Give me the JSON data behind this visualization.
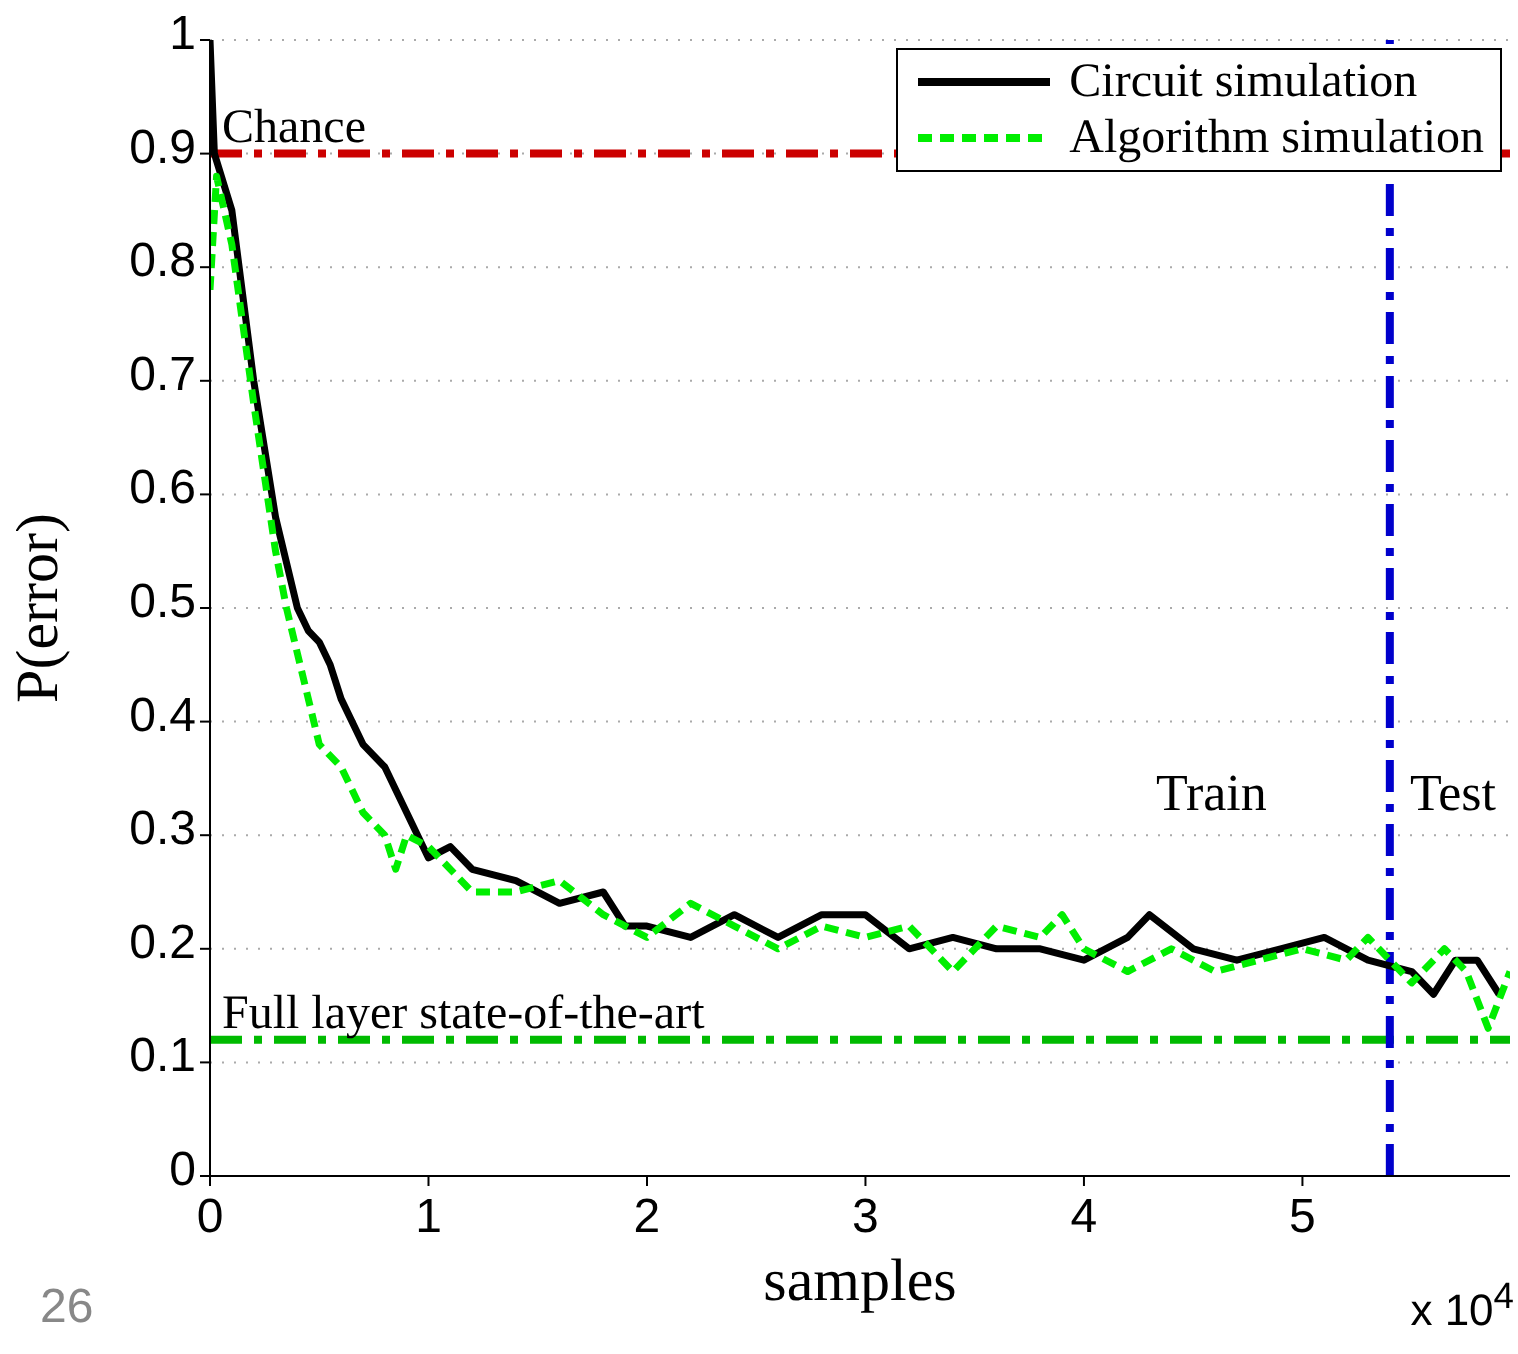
{
  "chart_data": {
    "type": "line",
    "xlabel": "samples",
    "ylabel": "P(error)",
    "xlim": [
      0,
      5.95
    ],
    "xticks": [
      0,
      1,
      2,
      3,
      4,
      5
    ],
    "ylim": [
      0,
      1
    ],
    "yticks": [
      0,
      0.1,
      0.2,
      0.3,
      0.4,
      0.5,
      0.6,
      0.7,
      0.8,
      0.9,
      1
    ],
    "grid": "y",
    "legend": "top right",
    "marker": "none",
    "series": [
      {
        "name": "Circuit simulation",
        "color": "#000000",
        "line_style": "solid",
        "x": [
          0,
          0.02,
          0.1,
          0.2,
          0.3,
          0.4,
          0.45,
          0.5,
          0.55,
          0.6,
          0.7,
          0.8,
          0.9,
          1.0,
          1.1,
          1.2,
          1.4,
          1.6,
          1.8,
          1.9,
          2.0,
          2.2,
          2.4,
          2.6,
          2.8,
          3.0,
          3.2,
          3.4,
          3.6,
          3.8,
          4.0,
          4.2,
          4.3,
          4.5,
          4.7,
          4.9,
          5.1,
          5.3,
          5.5,
          5.6,
          5.7,
          5.8,
          5.9
        ],
        "values": [
          1.0,
          0.9,
          0.85,
          0.7,
          0.58,
          0.5,
          0.48,
          0.47,
          0.45,
          0.42,
          0.38,
          0.36,
          0.32,
          0.28,
          0.29,
          0.27,
          0.26,
          0.24,
          0.25,
          0.22,
          0.22,
          0.21,
          0.23,
          0.21,
          0.23,
          0.23,
          0.2,
          0.21,
          0.2,
          0.2,
          0.19,
          0.21,
          0.23,
          0.2,
          0.19,
          0.2,
          0.21,
          0.19,
          0.18,
          0.16,
          0.19,
          0.19,
          0.16
        ]
      },
      {
        "name": "Algorithm simulation",
        "color": "#00ee00",
        "line_style": "dashed",
        "x": [
          0,
          0.03,
          0.1,
          0.2,
          0.3,
          0.35,
          0.45,
          0.5,
          0.6,
          0.7,
          0.8,
          0.85,
          0.9,
          1.0,
          1.2,
          1.4,
          1.6,
          1.8,
          2.0,
          2.2,
          2.4,
          2.6,
          2.8,
          3.0,
          3.2,
          3.4,
          3.6,
          3.8,
          3.9,
          4.0,
          4.2,
          4.4,
          4.6,
          4.8,
          5.0,
          5.2,
          5.3,
          5.4,
          5.5,
          5.65,
          5.75,
          5.85,
          5.95
        ],
        "values": [
          0.78,
          0.88,
          0.82,
          0.68,
          0.55,
          0.5,
          0.42,
          0.38,
          0.36,
          0.32,
          0.3,
          0.27,
          0.3,
          0.29,
          0.25,
          0.25,
          0.26,
          0.23,
          0.21,
          0.24,
          0.22,
          0.2,
          0.22,
          0.21,
          0.22,
          0.18,
          0.22,
          0.21,
          0.23,
          0.2,
          0.18,
          0.2,
          0.18,
          0.19,
          0.2,
          0.19,
          0.21,
          0.19,
          0.17,
          0.2,
          0.18,
          0.13,
          0.18
        ]
      }
    ],
    "ref_lines": [
      {
        "axis": "y",
        "value": 0.9,
        "label": "Chance",
        "color": "#cc0000",
        "line_style": "dashed"
      },
      {
        "axis": "y",
        "value": 0.12,
        "label": "Full layer state-of-the-art",
        "color": "#00bb00",
        "line_style": "dashed"
      },
      {
        "axis": "x",
        "value": 5.4,
        "color": "#0000cc",
        "line_style": "dashed"
      }
    ],
    "annotations": [
      "Train",
      "Test",
      "x 10$^{4}$",
      "26"
    ]
  }
}
